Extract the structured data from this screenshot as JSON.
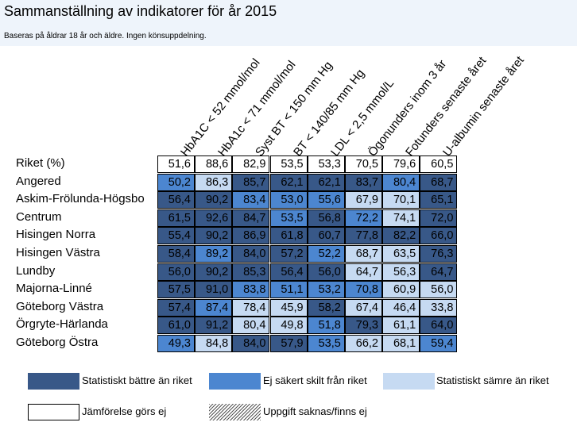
{
  "title": "Sammanställning av indikatorer för år 2015",
  "subtitle": "Baseras på åldrar 18 år och äldre. Ingen könsuppdelning.",
  "columns": [
    "HbA1C < 52 mmol/mol",
    "HbA1c < 71 mmol/mol",
    "Syst BT < 150 mm Hg",
    "BT < 140/85 mm Hg",
    "LDL < 2,5 mmol/L",
    "Ögonunders inom 3 år",
    "Fotunders senaste året",
    "U-albumin senaste året"
  ],
  "rows": [
    {
      "label": "Riket (%)",
      "values": [
        "51,6",
        "88,6",
        "82,9",
        "53,5",
        "53,3",
        "70,5",
        "79,6",
        "60,5"
      ],
      "status": [
        "none",
        "none",
        "none",
        "none",
        "none",
        "none",
        "none",
        "none"
      ]
    },
    {
      "label": "Angered",
      "values": [
        "50,2",
        "86,3",
        "85,7",
        "62,1",
        "62,1",
        "83,7",
        "80,4",
        "68,7"
      ],
      "status": [
        "uncertain",
        "worse",
        "better",
        "better",
        "better",
        "better",
        "uncertain",
        "better"
      ]
    },
    {
      "label": "Askim-Frölunda-Högsbo",
      "values": [
        "56,4",
        "90,2",
        "83,4",
        "53,0",
        "55,6",
        "67,9",
        "70,1",
        "65,1"
      ],
      "status": [
        "better",
        "better",
        "uncertain",
        "uncertain",
        "uncertain",
        "worse",
        "worse",
        "better"
      ]
    },
    {
      "label": "Centrum",
      "values": [
        "61,5",
        "92,6",
        "84,7",
        "53,5",
        "56,8",
        "72,2",
        "74,1",
        "72,0"
      ],
      "status": [
        "better",
        "better",
        "better",
        "uncertain",
        "better",
        "uncertain",
        "worse",
        "better"
      ]
    },
    {
      "label": "Hisingen Norra",
      "values": [
        "55,4",
        "90,2",
        "86,9",
        "61,8",
        "60,7",
        "77,8",
        "82,2",
        "66,0"
      ],
      "status": [
        "better",
        "better",
        "better",
        "better",
        "better",
        "better",
        "better",
        "better"
      ]
    },
    {
      "label": "Hisingen Västra",
      "values": [
        "58,4",
        "89,2",
        "84,0",
        "57,2",
        "52,2",
        "68,7",
        "63,5",
        "76,3"
      ],
      "status": [
        "better",
        "uncertain",
        "better",
        "better",
        "uncertain",
        "worse",
        "worse",
        "better"
      ]
    },
    {
      "label": "Lundby",
      "values": [
        "56,0",
        "90,2",
        "85,3",
        "56,4",
        "56,0",
        "64,7",
        "56,3",
        "64,7"
      ],
      "status": [
        "better",
        "better",
        "better",
        "better",
        "better",
        "worse",
        "worse",
        "better"
      ]
    },
    {
      "label": "Majorna-Linné",
      "values": [
        "57,5",
        "91,0",
        "83,8",
        "51,1",
        "53,2",
        "70,8",
        "60,9",
        "56,0"
      ],
      "status": [
        "better",
        "better",
        "uncertain",
        "uncertain",
        "uncertain",
        "uncertain",
        "worse",
        "worse"
      ]
    },
    {
      "label": "Göteborg Västra",
      "values": [
        "57,4",
        "87,4",
        "78,4",
        "45,9",
        "58,2",
        "67,4",
        "46,4",
        "33,8"
      ],
      "status": [
        "better",
        "uncertain",
        "worse",
        "worse",
        "better",
        "worse",
        "worse",
        "worse"
      ]
    },
    {
      "label": "Örgryte-Härlanda",
      "values": [
        "61,0",
        "91,2",
        "80,4",
        "49,8",
        "51,8",
        "79,3",
        "61,1",
        "64,0"
      ],
      "status": [
        "better",
        "better",
        "worse",
        "worse",
        "uncertain",
        "better",
        "worse",
        "better"
      ]
    },
    {
      "label": "Göteborg Östra",
      "values": [
        "49,3",
        "84,8",
        "84,0",
        "57,9",
        "53,5",
        "66,2",
        "68,1",
        "59,4"
      ],
      "status": [
        "uncertain",
        "worse",
        "better",
        "better",
        "uncertain",
        "worse",
        "worse",
        "uncertain"
      ]
    }
  ],
  "legend": {
    "better": "Statistiskt bättre än riket",
    "uncertain": "Ej säkert skilt från riket",
    "worse": "Statistiskt sämre än riket",
    "none": "Jämförelse görs ej",
    "missing": "Uppgift saknas/finns ej"
  }
}
